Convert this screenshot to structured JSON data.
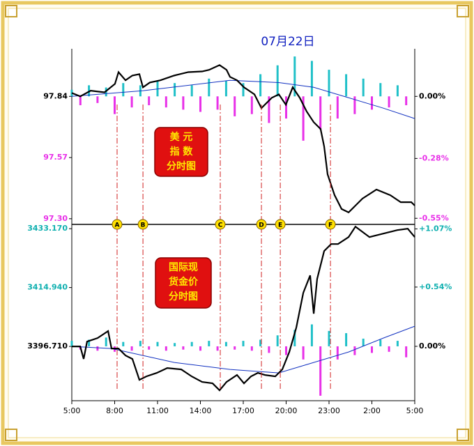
{
  "chart_data": [
    {
      "type": "line",
      "title": "07月22日",
      "box_text": [
        "美 元",
        "指 数",
        "分时图"
      ],
      "xlim": [
        0,
        24
      ],
      "xticks": [
        {
          "value": 0,
          "label": "5:00"
        },
        {
          "value": 3,
          "label": "8:00"
        },
        {
          "value": 6,
          "label": "11:00"
        },
        {
          "value": 9,
          "label": "14:00"
        },
        {
          "value": 12,
          "label": "17:00"
        },
        {
          "value": 15,
          "label": "20:00"
        },
        {
          "value": 18,
          "label": "23:00"
        },
        {
          "value": 21,
          "label": "2:00"
        },
        {
          "value": 24,
          "label": "5:00"
        }
      ],
      "ylim": [
        97.275,
        98.05
      ],
      "yticks": [
        97.84,
        97.57,
        {
          "value": 97.3,
          "label": "97.30"
        }
      ],
      "ytick_colors": [
        "#000000",
        "#e830e8",
        "#e830e8"
      ],
      "y2lim": [
        -0.5775,
        0.2146
      ],
      "y2ticks": [
        {
          "value": 0,
          "label": "0.00%"
        },
        {
          "value": -0.28,
          "label": "-0.28%"
        },
        {
          "value": -0.55,
          "label": "-0.55%"
        }
      ],
      "y2tick_colors": [
        "#000000",
        "#e830e8",
        "#e830e8"
      ],
      "markers": [
        {
          "label": "A",
          "x": 3.17
        },
        {
          "label": "B",
          "x": 4.98
        },
        {
          "label": "C",
          "x": 10.39
        },
        {
          "label": "D",
          "x": 13.27
        },
        {
          "label": "E",
          "x": 14.59
        },
        {
          "label": "F",
          "x": 18.1
        }
      ],
      "x": [
        0,
        0.59,
        1.32,
        2.29,
        3.02,
        3.27,
        3.76,
        4.24,
        4.73,
        4.98,
        5.46,
        6.2,
        7.17,
        8.15,
        9.12,
        9.61,
        10.34,
        10.83,
        11.07,
        11.56,
        12.05,
        12.78,
        13.27,
        14,
        14.49,
        14.98,
        15.46,
        15.95,
        16.44,
        16.93,
        17.41,
        17.66,
        17.9,
        18.39,
        18.88,
        19.37,
        19.85,
        20.34,
        21.32,
        22.29,
        23.02,
        23.76,
        24
      ],
      "series": [
        {
          "color": "#000000",
          "values": [
            97.855,
            97.84,
            97.865,
            97.858,
            97.895,
            97.947,
            97.911,
            97.932,
            97.938,
            97.88,
            97.901,
            97.911,
            97.932,
            97.947,
            97.95,
            97.957,
            97.978,
            97.957,
            97.926,
            97.911,
            97.88,
            97.849,
            97.788,
            97.834,
            97.849,
            97.803,
            97.88,
            97.834,
            97.773,
            97.726,
            97.696,
            97.619,
            97.496,
            97.404,
            97.343,
            97.328,
            97.358,
            97.389,
            97.429,
            97.404,
            97.373,
            97.373,
            97.358
          ]
        }
      ],
      "average": {
        "color": "#1030c0",
        "x": [
          0,
          5,
          11.07,
          14.49,
          16.93,
          19.37,
          21.8,
          24
        ],
        "values": [
          97.84,
          97.865,
          97.911,
          97.901,
          97.88,
          97.834,
          97.788,
          97.742
        ]
      },
      "bars": {
        "axis": "y2",
        "up_color": "#20c0c8",
        "down_color": "#e830e8",
        "x": [
          0,
          0.6,
          1.2,
          1.8,
          2.4,
          3,
          3.6,
          4.2,
          4.8,
          5.4,
          6,
          6.6,
          7.2,
          7.8,
          8.4,
          9,
          9.6,
          10.2,
          10.8,
          11.4,
          12,
          12.6,
          13.2,
          13.8,
          14.4,
          15,
          15.6,
          16.2,
          16.8,
          17.4,
          18,
          18.6,
          19.2,
          19.8,
          20.4,
          21,
          21.6,
          22.2,
          22.8,
          23.4
        ],
        "values": [
          0.03,
          -0.04,
          0.05,
          -0.03,
          0.04,
          -0.08,
          0.06,
          -0.05,
          0.05,
          -0.04,
          0.07,
          -0.05,
          0.06,
          -0.06,
          0.05,
          -0.07,
          0.08,
          -0.06,
          0.07,
          -0.09,
          0.06,
          -0.08,
          0.1,
          -0.12,
          0.14,
          -0.1,
          0.18,
          -0.2,
          0.16,
          -0.15,
          0.12,
          -0.1,
          0.1,
          -0.08,
          0.08,
          -0.06,
          0.06,
          -0.05,
          0.05,
          -0.04
        ]
      }
    },
    {
      "type": "line",
      "box_text": [
        "国际现",
        "货金价",
        "分时图"
      ],
      "xlim": [
        0,
        24
      ],
      "ylim": [
        3379.9,
        3434.5
      ],
      "yticks": [
        {
          "value": 3433.17,
          "label": "3433.170"
        },
        {
          "value": 3414.94,
          "label": "3414.940"
        },
        {
          "value": 3396.71,
          "label": "3396.710"
        }
      ],
      "ytick_colors": [
        "#10b0b0",
        "#10b0b0",
        "#000000"
      ],
      "y2lim": [
        -0.4955,
        1.111
      ],
      "y2ticks": [
        {
          "value": 1.07,
          "label": "+1.07%"
        },
        {
          "value": 0.54,
          "label": "+0.54%"
        },
        {
          "value": 0,
          "label": "0.00%"
        }
      ],
      "y2tick_colors": [
        "#10b0b0",
        "#10b0b0",
        "#000000"
      ],
      "x": [
        0,
        0.59,
        0.83,
        1.07,
        1.8,
        2.54,
        2.78,
        3.27,
        3.76,
        4.24,
        4.73,
        5.22,
        5.95,
        6.68,
        7.66,
        8.39,
        9.12,
        9.85,
        10.34,
        10.83,
        11.56,
        12.05,
        12.54,
        13.02,
        13.51,
        14.24,
        14.73,
        15.22,
        15.71,
        16.2,
        16.68,
        16.93,
        17.17,
        17.66,
        18.15,
        18.63,
        19.37,
        19.85,
        20.83,
        21.8,
        22.78,
        23.51,
        24
      ],
      "series": [
        {
          "color": "#000000",
          "values": [
            3396.71,
            3396.71,
            3392.83,
            3398.22,
            3399.3,
            3401.46,
            3396.06,
            3396.06,
            3393.91,
            3392.83,
            3386.36,
            3387.43,
            3388.51,
            3390.02,
            3389.59,
            3387.43,
            3385.71,
            3385.28,
            3383.12,
            3385.71,
            3387.87,
            3385.28,
            3387.43,
            3388.51,
            3387.87,
            3387.43,
            3389.59,
            3394.98,
            3402.53,
            3413.32,
            3418.71,
            3406.85,
            3417.63,
            3426.26,
            3428.42,
            3428.42,
            3430.57,
            3433.81,
            3430.57,
            3431.65,
            3432.73,
            3433.17,
            3430.57
          ]
        }
      ],
      "average": {
        "color": "#1030c0",
        "x": [
          0,
          2.78,
          7.17,
          11.07,
          14.49,
          16.93,
          19.37,
          21.8,
          24
        ],
        "values": [
          3396.71,
          3396.06,
          3391.75,
          3389.59,
          3388.51,
          3391.75,
          3394.98,
          3399.3,
          3402.96
        ]
      },
      "bars": {
        "axis": "y2",
        "up_color": "#20c0c8",
        "down_color": "#e830e8",
        "x": [
          0,
          0.6,
          1.2,
          1.8,
          2.4,
          3,
          3.6,
          4.2,
          4.8,
          5.4,
          6,
          6.6,
          7.2,
          7.8,
          8.4,
          9,
          9.6,
          10.2,
          10.8,
          11.4,
          12,
          12.6,
          13.2,
          13.8,
          14.4,
          15,
          15.6,
          16.2,
          16.8,
          17.4,
          18,
          18.6,
          19.2,
          19.8,
          20.4,
          21,
          21.6,
          22.2,
          22.8,
          23.4
        ],
        "values": [
          0.05,
          -0.03,
          0.06,
          -0.04,
          0.08,
          -0.05,
          0.04,
          -0.04,
          0.05,
          -0.03,
          0.04,
          -0.04,
          0.03,
          -0.03,
          0.04,
          -0.04,
          0.05,
          -0.04,
          0.04,
          -0.03,
          0.05,
          -0.04,
          0.06,
          -0.06,
          0.1,
          -0.08,
          0.15,
          -0.12,
          0.2,
          -0.45,
          0.14,
          -0.12,
          0.12,
          -0.08,
          0.07,
          -0.06,
          0.06,
          -0.05,
          0.05,
          -0.1
        ]
      }
    }
  ]
}
